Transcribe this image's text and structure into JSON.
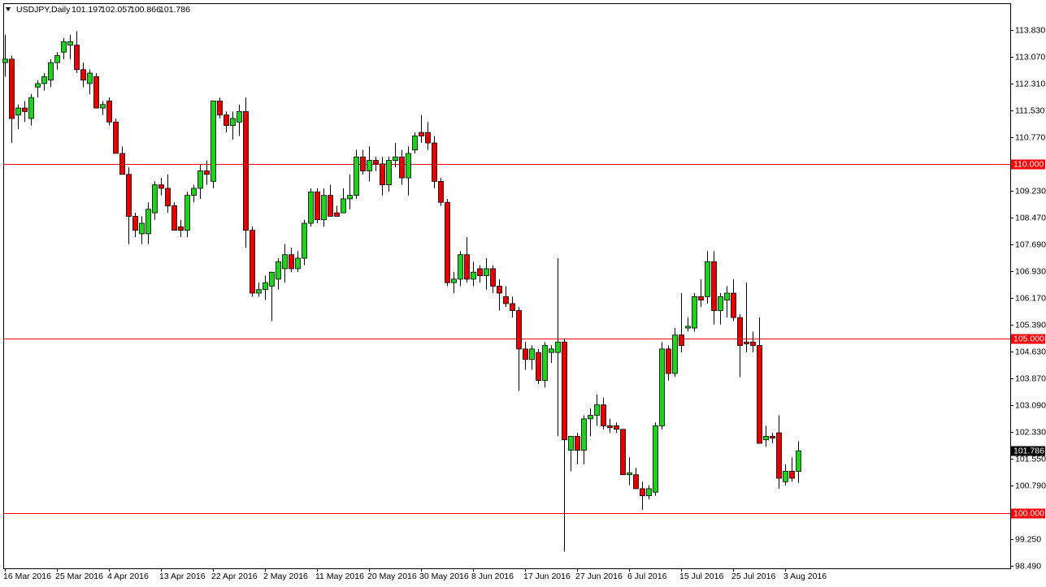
{
  "chart_data": {
    "type": "candlestick",
    "title": "USDJPY,Daily",
    "last_bar": {
      "open": 101.197,
      "high": 102.057,
      "low": 100.866,
      "close": 101.786
    },
    "categories": [
      "16 Mar 2016",
      null,
      null,
      null,
      null,
      null,
      null,
      null,
      "25 Mar 2016",
      null,
      null,
      null,
      null,
      null,
      null,
      null,
      "4 Apr 2016",
      null,
      null,
      null,
      null,
      null,
      null,
      null,
      "13 Apr 2016",
      null,
      null,
      null,
      null,
      null,
      null,
      null,
      "22 Apr 2016",
      null,
      null,
      null,
      null,
      null,
      null,
      null,
      "2 May 2016",
      null,
      null,
      null,
      null,
      null,
      null,
      null,
      "11 May 2016",
      null,
      null,
      null,
      null,
      null,
      null,
      null,
      "20 May 2016",
      null,
      null,
      null,
      null,
      null,
      null,
      null,
      "30 May 2016",
      null,
      null,
      null,
      null,
      null,
      null,
      null,
      "8 Jun 2016",
      null,
      null,
      null,
      null,
      null,
      null,
      null,
      "17 Jun 2016",
      null,
      null,
      null,
      null,
      null,
      null,
      null,
      "27 Jun 2016",
      null,
      null,
      null,
      null,
      null,
      null,
      null,
      "6 Jul 2016",
      null,
      null,
      null,
      null,
      null,
      null,
      null,
      "15 Jul 2016",
      null,
      null,
      null,
      null,
      null,
      null,
      null,
      "25 Jul 2016",
      null,
      null,
      null,
      null,
      null,
      null,
      null,
      "3 Aug 2016",
      null,
      null
    ],
    "open": [
      112.9,
      113.0,
      111.4,
      111.6,
      111.3,
      112.2,
      112.3,
      112.4,
      112.9,
      113.2,
      113.4,
      113.4,
      112.7,
      112.3,
      112.5,
      111.6,
      111.8,
      111.2,
      110.3,
      109.7,
      108.5,
      108.0,
      108.0,
      108.6,
      109.4,
      109.3,
      108.8,
      108.2,
      108.1,
      109.1,
      109.3,
      109.8,
      109.5,
      111.8,
      111.4,
      111.1,
      111.2,
      111.5,
      108.1,
      106.3,
      106.4,
      106.5,
      106.7,
      107.0,
      107.4,
      107.0,
      107.3,
      108.3,
      109.2,
      108.4,
      109.1,
      108.6,
      108.6,
      109.0,
      109.1,
      110.2,
      109.8,
      110.1,
      110.0,
      109.4,
      110.1,
      110.2,
      109.6,
      110.4,
      110.9,
      110.9,
      110.6,
      109.5,
      108.9,
      106.6,
      106.7,
      107.4,
      106.7,
      107.0,
      106.8,
      107.0,
      106.5,
      106.2,
      106.0,
      105.8,
      104.7,
      104.4,
      104.6,
      103.8,
      104.6,
      104.6,
      104.9,
      101.8,
      102.2,
      101.8,
      102.7,
      102.8,
      103.1,
      102.5,
      102.5,
      102.4,
      101.1,
      101.1,
      100.7,
      100.5,
      100.6,
      102.5,
      104.7,
      104.0,
      105.1,
      105.3,
      105.3,
      106.2,
      106.2,
      107.2,
      105.8,
      106.1,
      106.3,
      105.6,
      104.9,
      104.9,
      104.8,
      102.1,
      102.2,
      102.3,
      100.9,
      101.2,
      101.197
    ],
    "high": [
      113.7,
      113.1,
      111.7,
      111.8,
      112.0,
      112.4,
      112.6,
      113.0,
      113.2,
      113.6,
      113.7,
      113.8,
      112.9,
      112.7,
      112.6,
      111.8,
      111.9,
      111.3,
      110.5,
      109.9,
      108.6,
      108.5,
      108.9,
      109.5,
      109.6,
      109.7,
      108.9,
      108.4,
      109.2,
      109.4,
      110.0,
      110.1,
      111.8,
      111.9,
      111.5,
      111.5,
      111.7,
      111.9,
      108.2,
      106.6,
      106.8,
      106.9,
      107.3,
      107.7,
      107.6,
      107.5,
      108.4,
      109.3,
      109.3,
      109.3,
      109.4,
      108.8,
      109.3,
      109.7,
      110.4,
      110.4,
      110.5,
      110.2,
      110.2,
      110.2,
      110.6,
      110.4,
      110.5,
      110.9,
      111.4,
      111.2,
      110.8,
      109.6,
      109.0,
      106.9,
      107.5,
      107.9,
      107.2,
      107.1,
      107.3,
      107.1,
      106.7,
      106.5,
      106.2,
      105.9,
      104.9,
      104.8,
      104.7,
      104.9,
      104.8,
      107.3,
      105.0,
      102.2,
      102.3,
      102.8,
      103.0,
      103.4,
      103.3,
      102.7,
      102.6,
      102.4,
      101.6,
      101.3,
      100.9,
      100.8,
      102.6,
      104.9,
      104.8,
      105.3,
      106.3,
      105.6,
      106.3,
      106.7,
      107.5,
      107.5,
      106.3,
      106.5,
      106.7,
      105.7,
      106.6,
      105.2,
      105.6,
      102.5,
      102.3,
      102.8,
      101.4,
      101.6,
      102.057
    ],
    "low": [
      112.5,
      110.6,
      111.0,
      111.2,
      111.1,
      111.9,
      112.1,
      112.2,
      112.7,
      113.0,
      113.0,
      112.6,
      112.2,
      112.0,
      111.6,
      111.4,
      111.1,
      110.3,
      109.7,
      107.7,
      107.9,
      107.7,
      107.7,
      108.4,
      109.1,
      108.6,
      108.1,
      107.9,
      107.9,
      108.9,
      109.0,
      109.4,
      109.3,
      111.3,
      110.9,
      110.7,
      110.8,
      107.6,
      106.2,
      106.2,
      106.1,
      105.5,
      106.4,
      106.6,
      106.9,
      106.9,
      107.1,
      108.2,
      108.3,
      108.2,
      108.5,
      108.5,
      108.6,
      108.7,
      109.0,
      109.7,
      109.5,
      109.8,
      109.1,
      109.2,
      109.9,
      109.4,
      109.1,
      110.3,
      110.6,
      110.4,
      109.3,
      108.8,
      106.5,
      106.3,
      106.5,
      106.6,
      106.5,
      106.6,
      106.4,
      106.3,
      105.8,
      105.9,
      105.6,
      103.5,
      104.1,
      104.1,
      103.7,
      103.6,
      104.3,
      102.2,
      98.9,
      101.2,
      101.4,
      101.4,
      102.2,
      102.5,
      102.4,
      102.3,
      102.3,
      101.1,
      100.8,
      100.7,
      100.1,
      100.4,
      100.5,
      102.4,
      103.8,
      103.9,
      104.6,
      105.2,
      105.2,
      105.9,
      106.0,
      105.4,
      105.4,
      105.6,
      105.5,
      103.9,
      104.6,
      104.6,
      102.0,
      101.9,
      102.0,
      100.7,
      100.8,
      100.9,
      100.866
    ],
    "close": [
      113.0,
      111.3,
      111.6,
      111.5,
      111.9,
      112.3,
      112.5,
      112.9,
      113.1,
      113.5,
      113.5,
      112.7,
      112.4,
      112.6,
      111.6,
      111.7,
      111.2,
      110.3,
      109.7,
      108.5,
      108.1,
      108.3,
      108.7,
      109.4,
      109.3,
      108.8,
      108.1,
      108.1,
      109.1,
      109.3,
      109.8,
      109.7,
      111.8,
      111.4,
      111.1,
      111.3,
      111.5,
      108.1,
      106.3,
      106.4,
      106.6,
      106.9,
      107.2,
      107.4,
      107.0,
      107.3,
      108.3,
      109.2,
      108.4,
      109.1,
      108.5,
      108.5,
      109.0,
      109.1,
      110.2,
      109.8,
      110.1,
      110.0,
      109.4,
      110.1,
      110.2,
      109.6,
      110.3,
      110.8,
      110.8,
      110.6,
      109.5,
      108.9,
      106.6,
      106.7,
      107.4,
      106.7,
      106.9,
      106.8,
      107.0,
      106.5,
      106.3,
      106.0,
      105.8,
      104.7,
      104.4,
      104.7,
      103.8,
      104.8,
      104.7,
      104.9,
      102.1,
      102.2,
      101.8,
      102.7,
      102.8,
      103.1,
      102.5,
      102.45,
      102.4,
      101.1,
      101.15,
      100.7,
      100.5,
      100.7,
      102.5,
      104.7,
      104.0,
      105.1,
      104.8,
      105.35,
      106.2,
      106.1,
      107.2,
      105.8,
      106.2,
      106.3,
      105.6,
      104.8,
      104.85,
      104.8,
      102.0,
      102.2,
      102.15,
      101.0,
      101.2,
      101.0,
      101.786
    ],
    "up_color": "#1ed21e",
    "down_color": "#e60000",
    "wick_color": "#000000",
    "ylim": [
      98.42,
      114.6
    ],
    "yticks": [
      {
        "value": 113.83,
        "label": "113.830"
      },
      {
        "value": 113.07,
        "label": "113.070"
      },
      {
        "value": 112.31,
        "label": "112.310"
      },
      {
        "value": 111.53,
        "label": "111.530"
      },
      {
        "value": 110.77,
        "label": "110.770"
      },
      {
        "value": 109.23,
        "label": "109.230"
      },
      {
        "value": 108.47,
        "label": "108.470"
      },
      {
        "value": 107.69,
        "label": "107.690"
      },
      {
        "value": 106.93,
        "label": "106.930"
      },
      {
        "value": 106.17,
        "label": "106.170"
      },
      {
        "value": 105.39,
        "label": "105.390"
      },
      {
        "value": 104.63,
        "label": "104.630"
      },
      {
        "value": 103.87,
        "label": "103.870"
      },
      {
        "value": 103.09,
        "label": "103.090"
      },
      {
        "value": 102.33,
        "label": "102.330"
      },
      {
        "value": 101.55,
        "label": "101.550"
      },
      {
        "value": 100.79,
        "label": "100.790"
      },
      {
        "value": 99.25,
        "label": "99.250"
      },
      {
        "value": 98.49,
        "label": "98.490"
      }
    ],
    "levels": [
      {
        "value": 110,
        "label": "110.000"
      },
      {
        "value": 105,
        "label": "105.000"
      },
      {
        "value": 100,
        "label": "100.000"
      }
    ],
    "level_color": "#ff0000"
  }
}
